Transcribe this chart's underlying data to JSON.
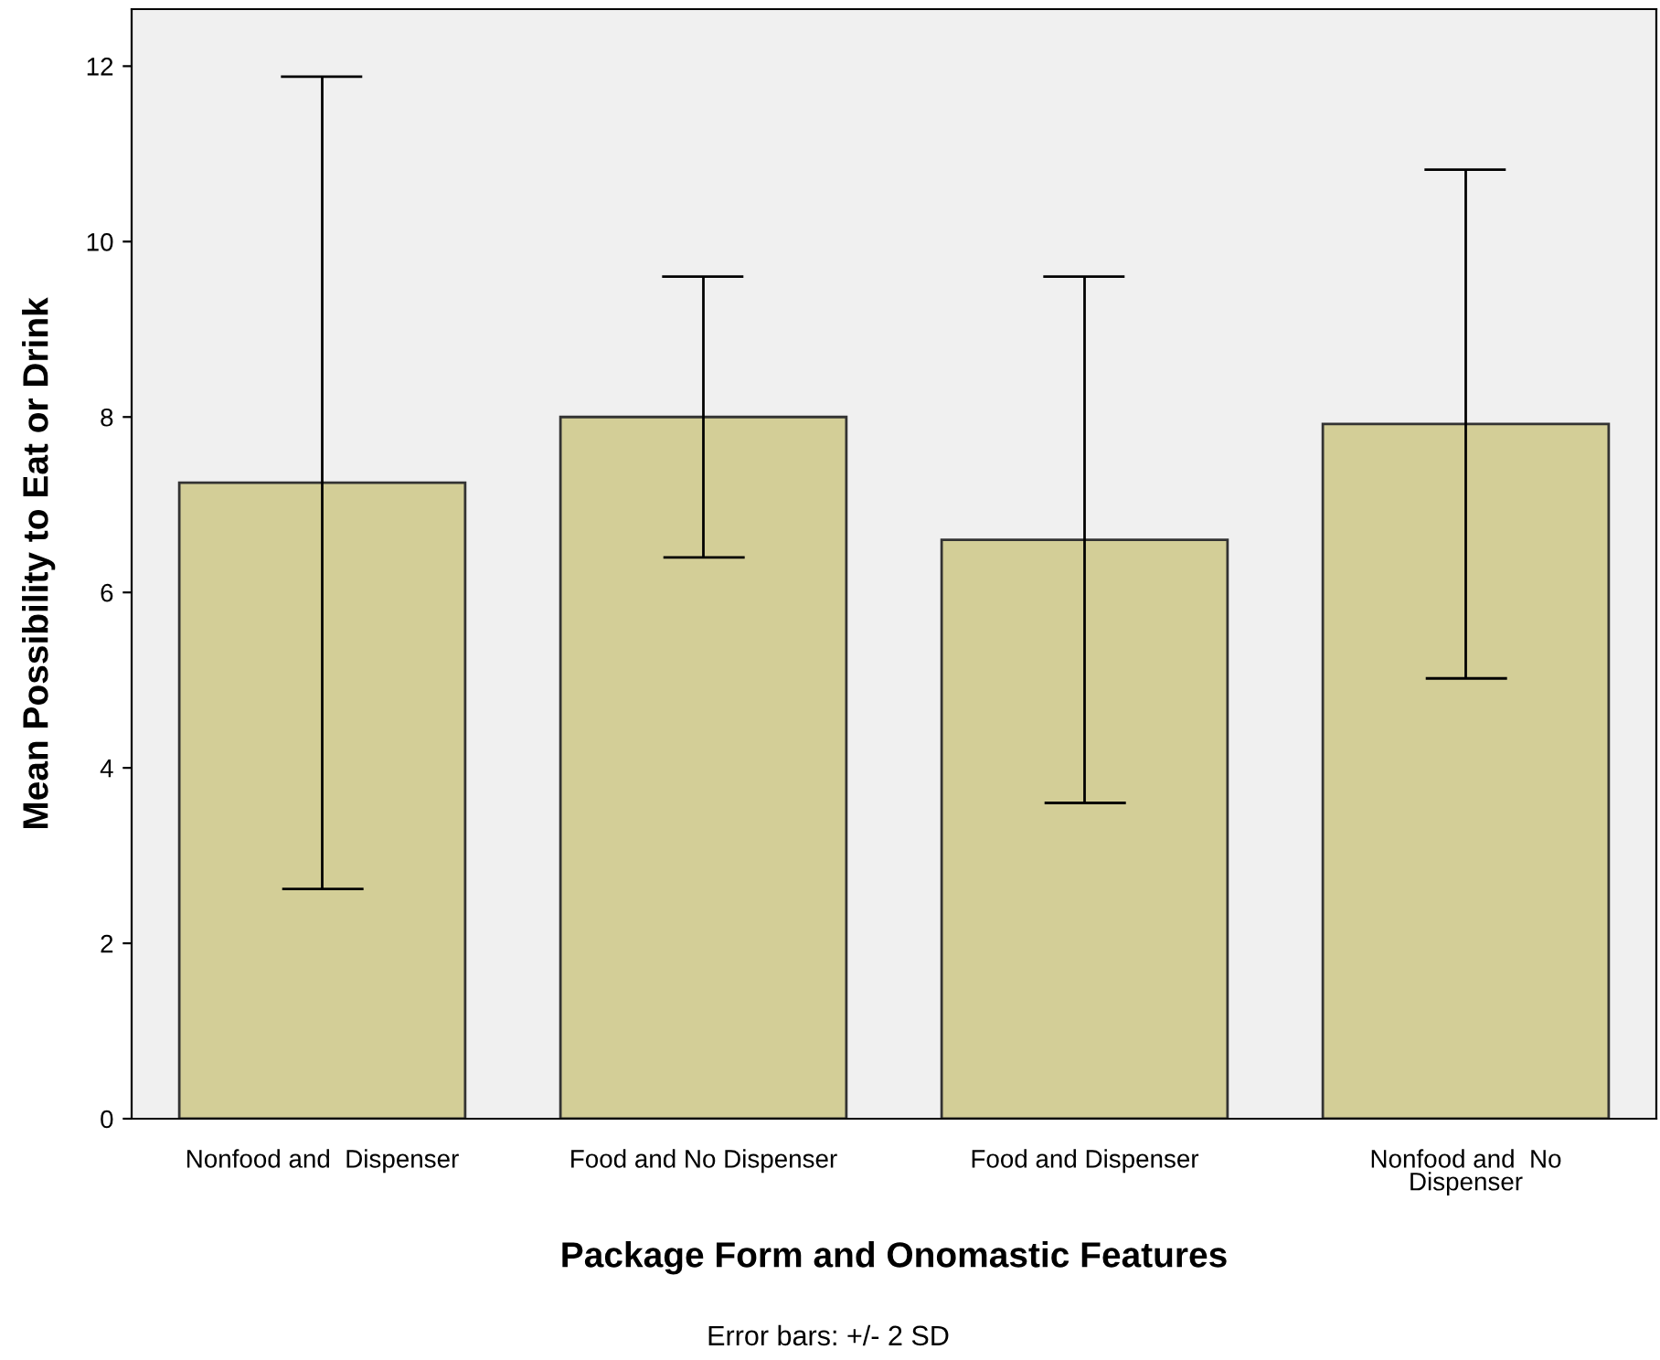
{
  "chart_data": {
    "type": "bar",
    "xlabel": "Package Form and Onomastic Features",
    "ylabel": "Mean Possibility to Eat or Drink",
    "categories": [
      "Nonfood and  Dispenser",
      "Food and No Dispenser",
      "Food and Dispenser",
      "Nonfood and  No\nDispenser"
    ],
    "values": [
      7.25,
      8.0,
      6.6,
      7.92
    ],
    "errors": [
      4.63,
      1.6,
      3.0,
      2.9
    ],
    "color": "#d3ce97",
    "ylim": [
      0,
      12.65
    ],
    "yticks": [
      0,
      2,
      4,
      6,
      8,
      10,
      12
    ],
    "grid": false,
    "annotations": [
      "Error bars: +/- 2 SD"
    ]
  }
}
